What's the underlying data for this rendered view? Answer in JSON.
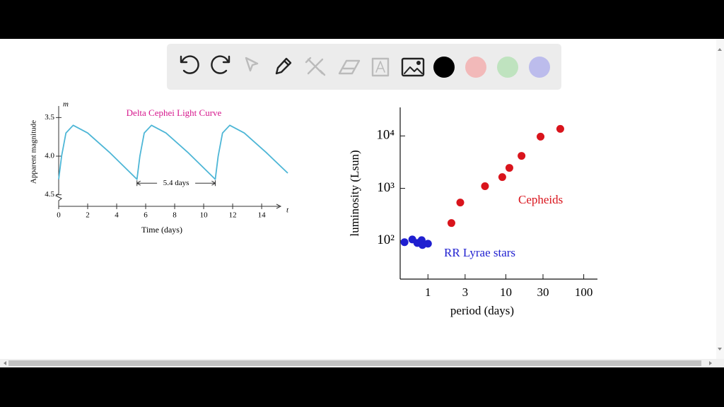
{
  "chart_data": [
    {
      "type": "line",
      "title": "Delta Cephei Light Curve",
      "xlabel": "Time (days)",
      "ylabel": "Apparent magnitude",
      "x_axis_symbol": "t",
      "y_axis_symbol": "m",
      "x": [
        0,
        0.2,
        0.5,
        1,
        2,
        3.5,
        5.4,
        5.6,
        5.9,
        6.4,
        7.4,
        8.9,
        10.8,
        11,
        11.3,
        11.8,
        12.8,
        14.3,
        15.8
      ],
      "series": [
        {
          "name": "Apparent magnitude",
          "color": "#4db6d6",
          "values": [
            4.3,
            4.0,
            3.7,
            3.6,
            3.7,
            3.95,
            4.3,
            4.0,
            3.7,
            3.6,
            3.7,
            3.95,
            4.3,
            4.0,
            3.7,
            3.6,
            3.7,
            3.95,
            4.22
          ]
        }
      ],
      "xlim": [
        0,
        15.8
      ],
      "xticks": [
        0,
        2,
        4,
        6,
        8,
        10,
        12,
        14
      ],
      "ylim": [
        4.65,
        3.35
      ],
      "yticks": [
        3.5,
        {
          "value": 4.0,
          "label": "4.0"
        },
        4.5
      ],
      "annotation": {
        "text": "5.4 days",
        "from": 5.4,
        "to": 10.8,
        "y": 4.35
      }
    },
    {
      "type": "scatter",
      "xlabel": "period  (days)",
      "ylabel": "luminosity (Lsun)",
      "log_scale": true,
      "series": [
        {
          "name": "RR Lyrae stars",
          "color": "#1f1fd0",
          "x": [
            0.5,
            0.63,
            0.73,
            0.83,
            0.85,
            1.0
          ],
          "values": [
            94,
            106,
            91,
            103,
            83,
            88
          ]
        },
        {
          "name": "Cepheids",
          "color": "#d9141c",
          "x": [
            2.0,
            2.6,
            5.4,
            9.0,
            11.1,
            15.9,
            27.9,
            50
          ],
          "values": [
            218,
            537,
            1100,
            1640,
            2460,
            4170,
            9680,
            13650
          ]
        }
      ],
      "xlim": [
        0.44,
        150
      ],
      "xticks": [
        1,
        3,
        10,
        30,
        100
      ],
      "ylim": [
        18.6,
        35000
      ],
      "yticks": [
        {
          "value": 100,
          "label": "10²"
        },
        {
          "value": 1000,
          "label": "10³"
        },
        {
          "value": 10000,
          "label": "10⁴"
        }
      ]
    }
  ]
}
